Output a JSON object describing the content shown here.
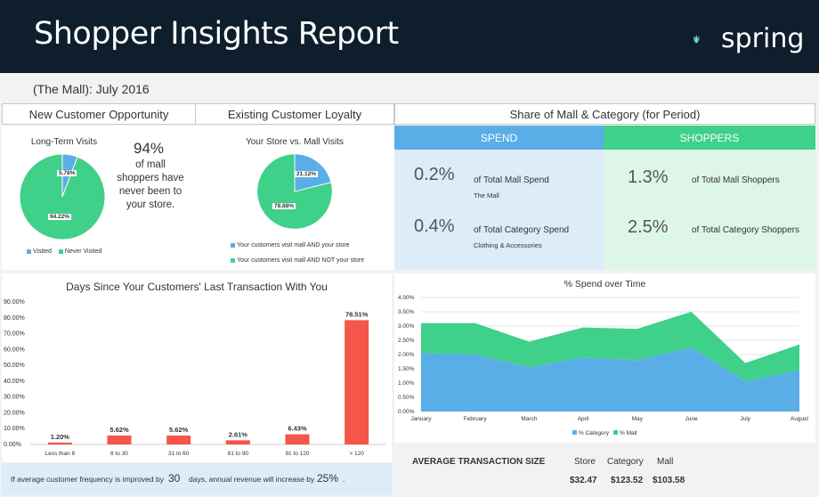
{
  "header": {
    "title": "Shopper Insights Report",
    "logo_text": "spring"
  },
  "subtitle": "(The Mall): July 2016",
  "tabs": {
    "new_customer": "New Customer Opportunity",
    "existing_loyalty": "Existing Customer Loyalty",
    "share": "Share of Mall & Category (for Period)"
  },
  "long_term": {
    "title": "Long-Term Visits",
    "big_pct": "94%",
    "desc_lines": [
      "of mall",
      "shoppers have",
      "never been to",
      "your store."
    ],
    "visited_label": "5.78%",
    "never_label": "94.22%",
    "legend": [
      "Visited",
      "Never Visited"
    ]
  },
  "loyalty": {
    "title": "Your Store vs. Mall Visits",
    "and_label": "21.12%",
    "not_label": "78.88%",
    "legend": [
      "Your customers visit mall AND your store",
      "Your customers visit mall AND NOT your store"
    ]
  },
  "share": {
    "spend_head": "SPEND",
    "shoppers_head": "SHOPPERS",
    "spend_mall_val": "0.2%",
    "spend_mall_lbl": "of Total Mall Spend",
    "spend_mall_sub": "The Mall",
    "spend_cat_val": "0.4%",
    "spend_cat_lbl": "of Total Category Spend",
    "spend_cat_sub": "Clothing & Accessories",
    "shop_mall_val": "1.3%",
    "shop_mall_lbl": "of Total Mall Shoppers",
    "shop_cat_val": "2.5%",
    "shop_cat_lbl": "of Total Category Shoppers"
  },
  "footer": {
    "pre": "If average customer frequency is improved by",
    "days": "30",
    "mid": "days, annual revenue will increase by",
    "pct": "25%",
    "end": "."
  },
  "avg_tx": {
    "label": "AVERAGE TRANSACTION SIZE",
    "store_h": "Store",
    "category_h": "Category",
    "mall_h": "Mall",
    "store_v": "$32.47",
    "category_v": "$123.52",
    "mall_v": "$103.58"
  },
  "colors": {
    "blue": "#5aaee8",
    "green": "#3fd08a",
    "red": "#f4564a"
  },
  "chart_data": [
    {
      "type": "pie",
      "title": "Long-Term Visits",
      "labels": [
        "Visited",
        "Never Visited"
      ],
      "values": [
        5.78,
        94.22
      ],
      "colors": [
        "#5aaee8",
        "#3fd08a"
      ],
      "legend": "bottom"
    },
    {
      "type": "pie",
      "title": "Your Store vs. Mall Visits",
      "labels": [
        "Your customers visit mall AND your store",
        "Your customers visit mall AND NOT your store"
      ],
      "values": [
        21.12,
        78.88
      ],
      "colors": [
        "#5aaee8",
        "#3fd08a"
      ],
      "legend": "bottom"
    },
    {
      "type": "bar",
      "title": "Days Since Your Customers' Last Transaction With You",
      "categories": [
        "Less than 8",
        "8 to 30",
        "31 to 60",
        "61 to 90",
        "91 to 120",
        "> 120"
      ],
      "values": [
        1.2,
        5.62,
        5.62,
        2.61,
        6.43,
        78.51
      ],
      "data_labels": [
        "1.20%",
        "5.62%",
        "5.62%",
        "2.61%",
        "6.43%",
        "78.51%"
      ],
      "ylim": [
        0,
        90
      ],
      "yticks": [
        "0.00%",
        "10.00%",
        "20.00%",
        "30.00%",
        "40.00%",
        "50.00%",
        "60.00%",
        "70.00%",
        "80.00%",
        "90.00%"
      ],
      "color": "#f4564a",
      "grid": false
    },
    {
      "type": "area",
      "title": "% Spend over Time",
      "categories": [
        "January",
        "February",
        "March",
        "April",
        "May",
        "June",
        "July",
        "August"
      ],
      "series": [
        {
          "name": "% Category",
          "values": [
            2.05,
            2.0,
            1.55,
            1.9,
            1.8,
            2.25,
            1.05,
            1.45
          ],
          "color": "#5aaee8"
        },
        {
          "name": "% Mall",
          "values": [
            1.05,
            1.1,
            0.9,
            1.05,
            1.1,
            1.25,
            0.65,
            0.9
          ],
          "color": "#3fd08a"
        }
      ],
      "stacked": true,
      "ylim": [
        0,
        4
      ],
      "yticks": [
        "0.00%",
        "0.50%",
        "1.00%",
        "1.50%",
        "2.00%",
        "2.50%",
        "3.00%",
        "3.50%",
        "4.00%"
      ],
      "legend": "bottom"
    }
  ]
}
